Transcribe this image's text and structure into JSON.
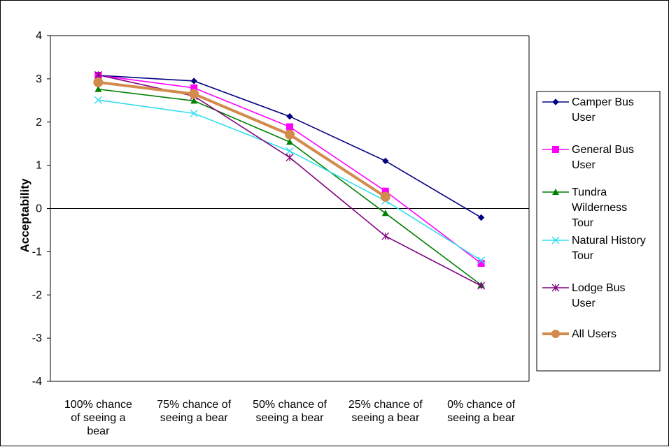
{
  "chart_data": {
    "type": "line",
    "title": "",
    "xlabel": "",
    "ylabel": "Acceptability",
    "ylim": [
      -4,
      4
    ],
    "ytick_step": 1,
    "reference_line_y": 0,
    "grid": false,
    "legend_position": "right",
    "categories": [
      [
        "100% chance",
        "of seeing a",
        "bear"
      ],
      [
        "75% chance of",
        "seeing a bear"
      ],
      [
        "50% chance of",
        "seeing a bear"
      ],
      [
        "25% chance of",
        "seeing a bear"
      ],
      [
        "0% chance of",
        "seeing a bear"
      ]
    ],
    "series": [
      {
        "name": [
          "Camper Bus",
          "User"
        ],
        "color": "#000080",
        "marker": "diamond",
        "values": [
          3.08,
          2.95,
          2.13,
          1.1,
          -0.21
        ]
      },
      {
        "name": [
          "General Bus",
          "User"
        ],
        "color": "#ff00ff",
        "marker": "square",
        "values": [
          3.08,
          2.79,
          1.89,
          0.4,
          -1.27
        ]
      },
      {
        "name": [
          "Tundra",
          "Wilderness",
          "Tour"
        ],
        "color": "#008000",
        "marker": "triangle",
        "values": [
          2.76,
          2.49,
          1.54,
          -0.11,
          -1.77
        ]
      },
      {
        "name": [
          "Natural History",
          "Tour"
        ],
        "color": "#33ddee",
        "marker": "x",
        "values": [
          2.51,
          2.2,
          1.33,
          0.18,
          -1.2
        ]
      },
      {
        "name": [
          "Lodge Bus",
          "User"
        ],
        "color": "#800080",
        "marker": "asterisk",
        "values": [
          3.09,
          2.6,
          1.18,
          -0.64,
          -1.79
        ]
      },
      {
        "name": [
          "All Users"
        ],
        "color": "#d38b4b",
        "marker": "circle",
        "values": [
          2.92,
          2.65,
          1.71,
          0.27,
          null
        ]
      }
    ]
  }
}
